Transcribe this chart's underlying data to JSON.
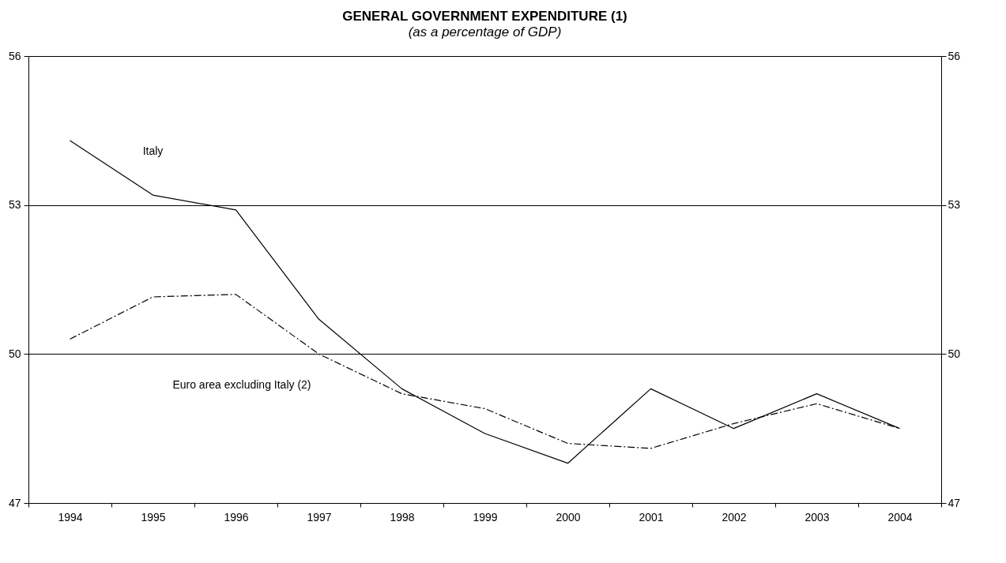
{
  "chart_data": {
    "type": "line",
    "title": "GENERAL GOVERNMENT EXPENDITURE (1)",
    "subtitle": "(as a percentage of GDP)",
    "categories": [
      "1994",
      "1995",
      "1996",
      "1997",
      "1998",
      "1999",
      "2000",
      "2001",
      "2002",
      "2003",
      "2004"
    ],
    "series": [
      {
        "name": "Italy",
        "color": "#000000",
        "line_style": "solid",
        "values": [
          54.3,
          53.2,
          52.9,
          50.7,
          49.3,
          48.4,
          47.8,
          49.3,
          48.5,
          49.2,
          48.5
        ]
      },
      {
        "name": "Euro area excluding Italy (2)",
        "color": "#000000",
        "line_style": "dashed",
        "values": [
          50.3,
          51.15,
          51.2,
          50.0,
          49.2,
          48.9,
          48.2,
          48.1,
          48.6,
          49.0,
          48.5
        ]
      }
    ],
    "ylim": [
      47,
      56
    ],
    "yticks": [
      47,
      50,
      53,
      56
    ],
    "y2lim": [
      47,
      56
    ],
    "y2ticks": [
      47,
      50,
      53,
      56
    ],
    "grid": "y",
    "marker": "none"
  }
}
